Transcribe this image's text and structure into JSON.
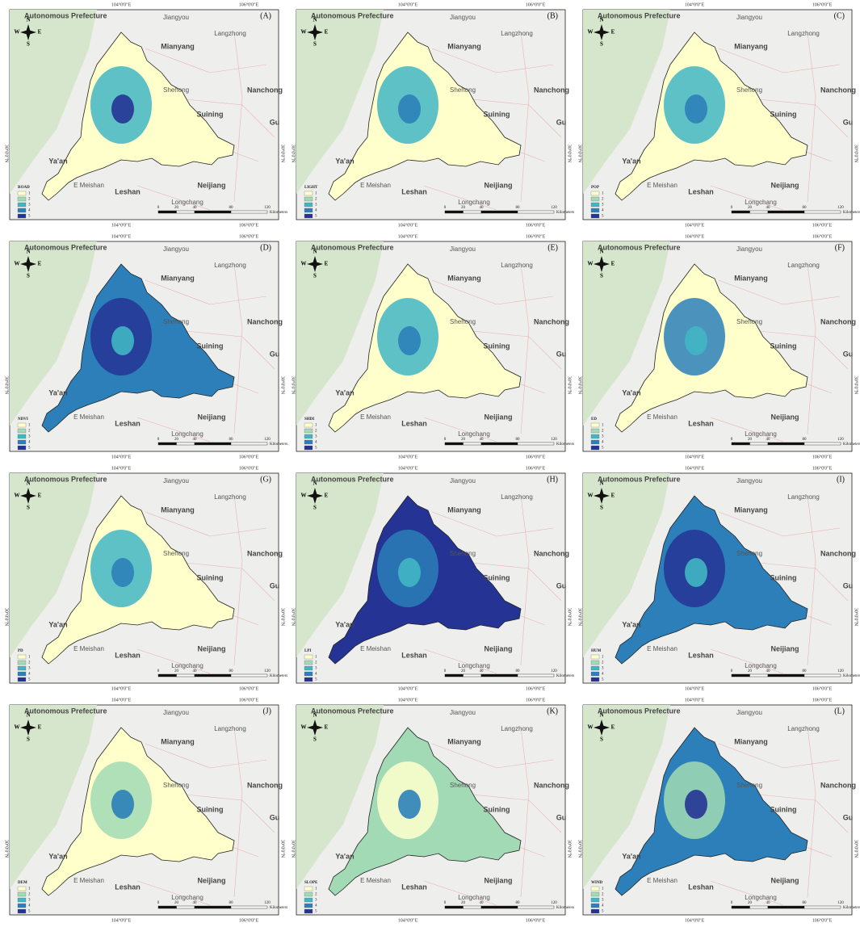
{
  "panels": [
    {
      "label": "(A)",
      "legend_title": "ROAD"
    },
    {
      "label": "(B)",
      "legend_title": "LIGHT"
    },
    {
      "label": "(C)",
      "legend_title": "POP"
    },
    {
      "label": "(D)",
      "legend_title": "NDVI"
    },
    {
      "label": "(E)",
      "legend_title": "SHDI"
    },
    {
      "label": "(F)",
      "legend_title": "ED"
    },
    {
      "label": "(G)",
      "legend_title": "PD"
    },
    {
      "label": "(H)",
      "legend_title": "LPI"
    },
    {
      "label": "(I)",
      "legend_title": "HUM"
    },
    {
      "label": "(J)",
      "legend_title": "DEM"
    },
    {
      "label": "(K)",
      "legend_title": "SLOPE"
    },
    {
      "label": "(L)",
      "legend_title": "WIND"
    }
  ],
  "map": {
    "places": [
      "Autonomous Prefecture",
      "Jiangyou",
      "Langzhong",
      "Mianyang",
      "Shehong",
      "Nanchong",
      "Suining",
      "Gu",
      "Ya'an",
      "E Meishan",
      "Leshan",
      "Neijiang",
      "Longchang"
    ],
    "lon_labels": [
      "104°0'0\"E",
      "106°0'0\"E"
    ],
    "lat_label": "30°0'0\"N",
    "compass": [
      "N",
      "S",
      "W",
      "E"
    ],
    "legend_classes": [
      "1",
      "2",
      "3",
      "4",
      "5"
    ],
    "legend_colors": [
      "#ffffcc",
      "#a1dab4",
      "#41b6c4",
      "#2c7fb8",
      "#253494"
    ],
    "scale": {
      "ticks": [
        0,
        20,
        40,
        80,
        120
      ],
      "unit": "Kilometers"
    }
  }
}
